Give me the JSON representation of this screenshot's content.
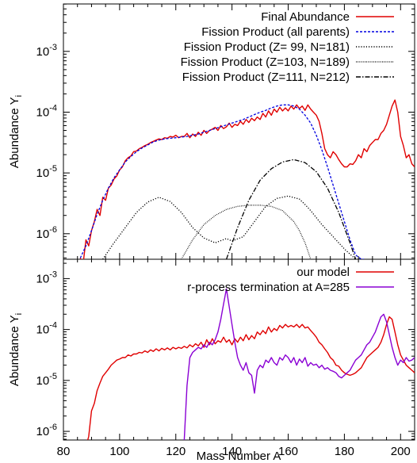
{
  "chart_data": [
    {
      "type": "line",
      "panel": "top",
      "ylabel": "Abundance Y",
      "ylabel_sub": "i",
      "xlim": [
        80,
        205
      ],
      "ylim_log10": [
        -6.42,
        -2.22
      ],
      "yscale": "log",
      "y_tick_exponents": [
        "-6",
        "-5",
        "-4",
        "-3"
      ],
      "y_tick_values": [
        -6,
        -5,
        -4,
        -3
      ],
      "y_tick_base": "10",
      "legend_position": "top-right",
      "series": [
        {
          "name": "Final Abundance",
          "color": "#e00000",
          "dash": "solid",
          "x": [
            86,
            87,
            88,
            89,
            90,
            91,
            92,
            93,
            94,
            95,
            96,
            97,
            98,
            99,
            100,
            101,
            102,
            103,
            104,
            105,
            106,
            107,
            108,
            109,
            110,
            111,
            112,
            113,
            114,
            115,
            116,
            117,
            118,
            119,
            120,
            121,
            122,
            123,
            124,
            125,
            126,
            127,
            128,
            129,
            130,
            131,
            132,
            133,
            134,
            135,
            136,
            137,
            138,
            139,
            140,
            141,
            142,
            143,
            144,
            145,
            146,
            147,
            148,
            149,
            150,
            151,
            152,
            153,
            154,
            155,
            156,
            157,
            158,
            159,
            160,
            161,
            162,
            163,
            164,
            165,
            166,
            167,
            168,
            169,
            170,
            171,
            172,
            173,
            174,
            175,
            176,
            177,
            178,
            179,
            180,
            181,
            182,
            183,
            184,
            185,
            186,
            187,
            188,
            189,
            190,
            191,
            192,
            193,
            194,
            195,
            196,
            197,
            198,
            199,
            200,
            201,
            202,
            203,
            204,
            205
          ],
          "log10y": [
            -6.4,
            -6.5,
            -6.1,
            -6.2,
            -5.95,
            -5.8,
            -5.6,
            -5.7,
            -5.4,
            -5.45,
            -5.25,
            -5.2,
            -5.1,
            -5.05,
            -4.95,
            -4.9,
            -4.8,
            -4.75,
            -4.72,
            -4.65,
            -4.64,
            -4.6,
            -4.58,
            -4.55,
            -4.53,
            -4.5,
            -4.48,
            -4.46,
            -4.44,
            -4.45,
            -4.42,
            -4.43,
            -4.4,
            -4.41,
            -4.38,
            -4.42,
            -4.4,
            -4.4,
            -4.35,
            -4.42,
            -4.36,
            -4.4,
            -4.33,
            -4.38,
            -4.3,
            -4.35,
            -4.3,
            -4.28,
            -4.25,
            -4.3,
            -4.22,
            -4.27,
            -4.24,
            -4.18,
            -4.25,
            -4.2,
            -4.22,
            -4.15,
            -4.2,
            -4.12,
            -4.17,
            -4.1,
            -4.14,
            -4.08,
            -4.12,
            -4.02,
            -4.08,
            -3.98,
            -4.05,
            -3.95,
            -4.0,
            -3.92,
            -3.98,
            -3.93,
            -3.98,
            -3.9,
            -3.95,
            -3.88,
            -3.94,
            -3.9,
            -3.97,
            -3.88,
            -3.95,
            -4.0,
            -4.05,
            -4.15,
            -4.35,
            -4.6,
            -4.7,
            -4.75,
            -4.65,
            -4.7,
            -4.78,
            -4.85,
            -4.9,
            -4.9,
            -4.85,
            -4.86,
            -4.8,
            -4.7,
            -4.75,
            -4.6,
            -4.65,
            -4.55,
            -4.5,
            -4.45,
            -4.45,
            -4.35,
            -4.3,
            -4.2,
            -4.05,
            -3.9,
            -3.8,
            -4.0,
            -4.4,
            -4.55,
            -4.75,
            -4.7,
            -4.85,
            -4.9
          ]
        },
        {
          "name": "Fission Product (all parents)",
          "color": "#0000e0",
          "dash": "3,2",
          "x": [
            86,
            88,
            90,
            92,
            94,
            96,
            98,
            100,
            102,
            104,
            106,
            108,
            110,
            112,
            114,
            116,
            118,
            120,
            122,
            124,
            126,
            128,
            130,
            132,
            134,
            136,
            138,
            140,
            142,
            144,
            146,
            148,
            150,
            152,
            154,
            156,
            158,
            160,
            162,
            164,
            166,
            168,
            170,
            172,
            174,
            176,
            178,
            180,
            182,
            184,
            186,
            187
          ],
          "log10y": [
            -6.4,
            -6.2,
            -5.95,
            -5.68,
            -5.45,
            -5.25,
            -5.08,
            -4.95,
            -4.82,
            -4.73,
            -4.65,
            -4.59,
            -4.54,
            -4.49,
            -4.46,
            -4.44,
            -4.43,
            -4.42,
            -4.41,
            -4.4,
            -4.38,
            -4.36,
            -4.33,
            -4.3,
            -4.27,
            -4.24,
            -4.21,
            -4.18,
            -4.15,
            -4.12,
            -4.08,
            -4.04,
            -4.0,
            -3.97,
            -3.93,
            -3.9,
            -3.88,
            -3.88,
            -3.9,
            -3.95,
            -4.05,
            -4.18,
            -4.38,
            -4.62,
            -4.9,
            -5.2,
            -5.5,
            -5.8,
            -6.1,
            -6.35,
            -6.42,
            -6.42
          ]
        },
        {
          "name": "Fission Product (Z=  99, N=181)",
          "color": "#000000",
          "dash": "1.2,2",
          "x": [
            94,
            98,
            102,
            106,
            110,
            114,
            118,
            122,
            126,
            130,
            134,
            138,
            140,
            144,
            148,
            152,
            156,
            160,
            164,
            166,
            168,
            172,
            176,
            180,
            184
          ],
          "log10y": [
            -6.42,
            -6.15,
            -5.9,
            -5.65,
            -5.48,
            -5.4,
            -5.47,
            -5.65,
            -5.9,
            -6.07,
            -6.15,
            -6.08,
            -6.12,
            -6.05,
            -5.8,
            -5.55,
            -5.42,
            -5.38,
            -5.43,
            -5.52,
            -5.62,
            -5.85,
            -6.05,
            -6.25,
            -6.42
          ]
        },
        {
          "name": "Fission Product (Z=103, N=189)",
          "color": "#000000",
          "dash": "0.8,1.4",
          "x": [
            122,
            126,
            130,
            134,
            138,
            142,
            146,
            150,
            154,
            158,
            162,
            164,
            166,
            168
          ],
          "log10y": [
            -6.42,
            -6.1,
            -5.85,
            -5.7,
            -5.6,
            -5.55,
            -5.53,
            -5.53,
            -5.55,
            -5.62,
            -5.8,
            -5.95,
            -6.15,
            -6.42
          ]
        },
        {
          "name": "Fission Product (Z=111, N=212)",
          "color": "#000000",
          "dash": "6,2,1.5,2",
          "x": [
            138,
            142,
            146,
            150,
            154,
            158,
            162,
            166,
            170,
            174,
            178,
            182,
            184
          ],
          "log10y": [
            -6.42,
            -5.9,
            -5.45,
            -5.12,
            -4.93,
            -4.82,
            -4.78,
            -4.83,
            -4.98,
            -5.25,
            -5.65,
            -6.15,
            -6.42
          ]
        }
      ]
    },
    {
      "type": "line",
      "panel": "bottom",
      "xlabel": "Mass Number A",
      "ylabel": "Abundance Y",
      "ylabel_sub": "i",
      "xlim": [
        80,
        205
      ],
      "ylim_log10": [
        -6.17,
        -2.62
      ],
      "yscale": "log",
      "x_ticks": [
        "80",
        "100",
        "120",
        "140",
        "160",
        "180",
        "200"
      ],
      "x_tick_values": [
        80,
        100,
        120,
        140,
        160,
        180,
        200
      ],
      "y_tick_exponents": [
        "-6",
        "-5",
        "-4",
        "-3"
      ],
      "y_tick_values": [
        -6,
        -5,
        -4,
        -3
      ],
      "y_tick_base": "10",
      "legend_position": "top-right",
      "series": [
        {
          "name": "our model",
          "color": "#e00000",
          "dash": "solid",
          "x": [
            88,
            89,
            90,
            91,
            92,
            93,
            94,
            95,
            96,
            97,
            98,
            99,
            100,
            101,
            102,
            103,
            104,
            105,
            106,
            107,
            108,
            109,
            110,
            111,
            112,
            113,
            114,
            115,
            116,
            117,
            118,
            119,
            120,
            121,
            122,
            123,
            124,
            125,
            126,
            127,
            128,
            129,
            130,
            131,
            132,
            133,
            134,
            135,
            136,
            137,
            138,
            139,
            140,
            141,
            142,
            143,
            144,
            145,
            146,
            147,
            148,
            149,
            150,
            151,
            152,
            153,
            154,
            155,
            156,
            157,
            158,
            159,
            160,
            161,
            162,
            163,
            164,
            165,
            166,
            167,
            168,
            169,
            170,
            171,
            172,
            173,
            174,
            175,
            176,
            177,
            178,
            179,
            180,
            181,
            182,
            183,
            184,
            185,
            186,
            187,
            188,
            189,
            190,
            191,
            192,
            193,
            194,
            195,
            196,
            197,
            198,
            199,
            200,
            201,
            202,
            203,
            204,
            205
          ],
          "log10y": [
            -6.3,
            -6.1,
            -5.6,
            -5.45,
            -5.2,
            -5.05,
            -4.92,
            -4.85,
            -4.78,
            -4.7,
            -4.65,
            -4.6,
            -4.58,
            -4.55,
            -4.55,
            -4.5,
            -4.52,
            -4.48,
            -4.48,
            -4.45,
            -4.46,
            -4.42,
            -4.45,
            -4.4,
            -4.43,
            -4.38,
            -4.42,
            -4.37,
            -4.4,
            -4.36,
            -4.4,
            -4.35,
            -4.38,
            -4.35,
            -4.37,
            -4.33,
            -4.36,
            -4.3,
            -4.34,
            -4.28,
            -4.32,
            -4.25,
            -4.35,
            -4.2,
            -4.3,
            -4.18,
            -4.28,
            -4.22,
            -4.25,
            -4.15,
            -4.25,
            -4.2,
            -4.3,
            -4.18,
            -4.25,
            -4.15,
            -4.22,
            -4.1,
            -4.2,
            -4.12,
            -4.18,
            -4.05,
            -4.1,
            -4.02,
            -4.08,
            -3.95,
            -4.05,
            -3.98,
            -4.02,
            -3.92,
            -3.97,
            -3.9,
            -3.95,
            -3.92,
            -3.95,
            -3.9,
            -3.96,
            -3.9,
            -3.97,
            -3.95,
            -4.02,
            -4.08,
            -4.15,
            -4.25,
            -4.3,
            -4.38,
            -4.45,
            -4.55,
            -4.6,
            -4.7,
            -4.72,
            -4.8,
            -4.85,
            -4.88,
            -4.9,
            -4.88,
            -4.85,
            -4.8,
            -4.75,
            -4.65,
            -4.55,
            -4.5,
            -4.45,
            -4.4,
            -4.35,
            -4.25,
            -4.1,
            -3.9,
            -3.75,
            -3.8,
            -4.05,
            -4.3,
            -4.5,
            -4.6,
            -4.7,
            -4.75,
            -4.8,
            -4.85
          ]
        },
        {
          "name": "r-process termination at A=285",
          "color": "#8a00d4",
          "dash": "solid",
          "x": [
            123,
            124,
            125,
            126,
            127,
            128,
            129,
            130,
            131,
            132,
            133,
            134,
            135,
            136,
            137,
            138,
            139,
            140,
            141,
            142,
            143,
            144,
            145,
            146,
            147,
            148,
            149,
            150,
            151,
            152,
            153,
            154,
            155,
            156,
            157,
            158,
            159,
            160,
            161,
            162,
            163,
            164,
            165,
            166,
            167,
            168,
            169,
            170,
            171,
            172,
            173,
            174,
            175,
            176,
            177,
            178,
            179,
            180,
            181,
            182,
            183,
            184,
            185,
            186,
            187,
            188,
            189,
            190,
            191,
            192,
            193,
            194,
            195,
            196,
            197,
            198,
            199,
            200,
            201,
            202,
            203,
            204,
            205
          ],
          "log10y": [
            -6.17,
            -5.1,
            -4.55,
            -4.45,
            -4.4,
            -4.35,
            -4.38,
            -4.3,
            -4.35,
            -4.25,
            -4.3,
            -4.2,
            -4.05,
            -3.8,
            -3.5,
            -3.2,
            -3.55,
            -3.9,
            -4.25,
            -4.55,
            -4.7,
            -4.8,
            -4.65,
            -4.85,
            -4.9,
            -5.25,
            -4.8,
            -4.7,
            -4.75,
            -4.6,
            -4.65,
            -4.55,
            -4.65,
            -4.7,
            -4.55,
            -4.6,
            -4.5,
            -4.55,
            -4.65,
            -4.55,
            -4.7,
            -4.58,
            -4.65,
            -4.55,
            -4.72,
            -4.65,
            -4.7,
            -4.68,
            -4.75,
            -4.7,
            -4.78,
            -4.75,
            -4.8,
            -4.82,
            -4.85,
            -4.92,
            -4.95,
            -4.9,
            -4.85,
            -4.8,
            -4.7,
            -4.6,
            -4.55,
            -4.5,
            -4.4,
            -4.3,
            -4.25,
            -4.15,
            -4.05,
            -3.9,
            -3.75,
            -3.7,
            -3.85,
            -4.1,
            -4.35,
            -4.55,
            -4.7,
            -4.6,
            -4.65,
            -4.55,
            -4.62,
            -4.6,
            -4.55
          ]
        }
      ]
    }
  ]
}
